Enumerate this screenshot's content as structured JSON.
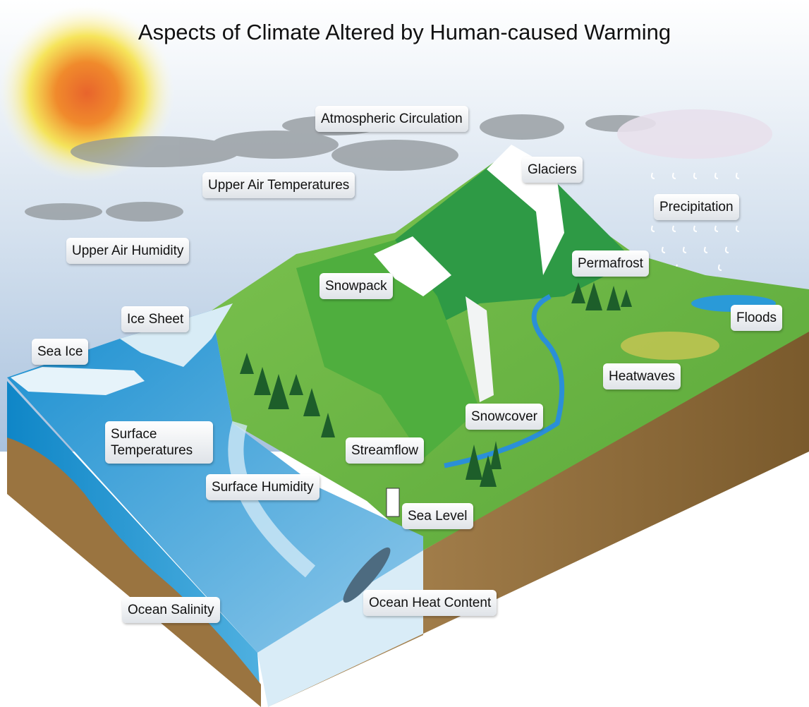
{
  "title": "Aspects of Climate Altered by Human-caused Warming",
  "labels": [
    {
      "text": "Atmospheric Circulation"
    },
    {
      "text": "Upper Air Temperatures"
    },
    {
      "text": "Upper Air Humidity"
    },
    {
      "text": "Glaciers"
    },
    {
      "text": "Precipitation"
    },
    {
      "text": "Permafrost"
    },
    {
      "text": "Snowpack"
    },
    {
      "text": "Ice Sheet"
    },
    {
      "text": "Sea Ice"
    },
    {
      "text": "Floods"
    },
    {
      "text": "Heatwaves"
    },
    {
      "text": "Snowcover"
    },
    {
      "text": "Surface Temperatures"
    },
    {
      "text": "Streamflow"
    },
    {
      "text": "Surface Humidity"
    },
    {
      "text": "Sea Level"
    },
    {
      "text": "Ocean Heat Content"
    },
    {
      "text": "Ocean Salinity"
    }
  ]
}
